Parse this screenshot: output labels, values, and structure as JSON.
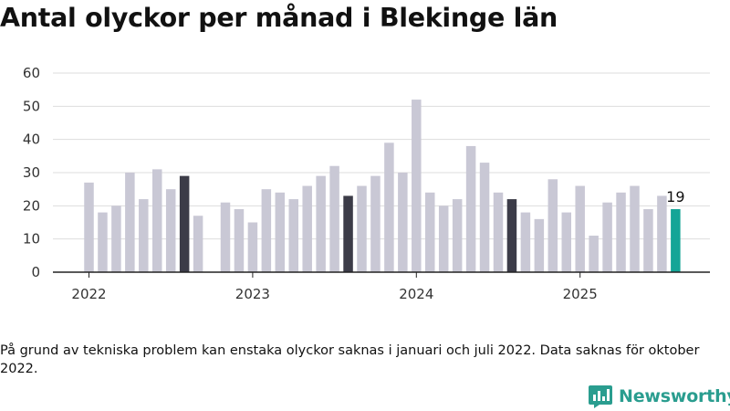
{
  "title": "Antal olyckor per månad i Blekinge län",
  "note": "På grund av tekniska problem kan enstaka olyckor saknas i januari och juli 2022. Data saknas för oktober 2022.",
  "brand": {
    "name": "Newsworthy",
    "icon": "newsworthy-logo-icon"
  },
  "colors": {
    "regular": "#c9c8d5",
    "august": "#3c3c48",
    "latest": "#14a597",
    "grid": "#dddddd",
    "axis": "#222222",
    "brand": "#2a9d8f"
  },
  "chart_data": {
    "type": "bar",
    "title": "Antal olyckor per månad i Blekinge län",
    "xlabel": "",
    "ylabel": "",
    "ylim": [
      0,
      60
    ],
    "yticks": [
      0,
      10,
      20,
      30,
      40,
      50,
      60
    ],
    "xticks": [
      "2022",
      "2023",
      "2024",
      "2025"
    ],
    "grid": true,
    "legend": "none",
    "categories": [
      "2022-01",
      "2022-02",
      "2022-03",
      "2022-04",
      "2022-05",
      "2022-06",
      "2022-07",
      "2022-08",
      "2022-09",
      "2022-10",
      "2022-11",
      "2022-12",
      "2023-01",
      "2023-02",
      "2023-03",
      "2023-04",
      "2023-05",
      "2023-06",
      "2023-07",
      "2023-08",
      "2023-09",
      "2023-10",
      "2023-11",
      "2023-12",
      "2024-01",
      "2024-02",
      "2024-03",
      "2024-04",
      "2024-05",
      "2024-06",
      "2024-07",
      "2024-08",
      "2024-09",
      "2024-10",
      "2024-11",
      "2024-12",
      "2025-01",
      "2025-02",
      "2025-03",
      "2025-04",
      "2025-05",
      "2025-06",
      "2025-07",
      "2025-08"
    ],
    "values": [
      27,
      18,
      20,
      30,
      22,
      31,
      25,
      29,
      17,
      null,
      21,
      19,
      15,
      25,
      24,
      22,
      26,
      29,
      32,
      23,
      26,
      29,
      39,
      30,
      52,
      24,
      20,
      22,
      38,
      33,
      24,
      22,
      18,
      16,
      28,
      18,
      26,
      11,
      21,
      24,
      26,
      19,
      23,
      19
    ],
    "highlighted": [
      "2022-08",
      "2023-08",
      "2024-08"
    ],
    "latest": "2025-08",
    "data_labels": [
      {
        "category": "2025-08",
        "value": 19
      }
    ]
  }
}
